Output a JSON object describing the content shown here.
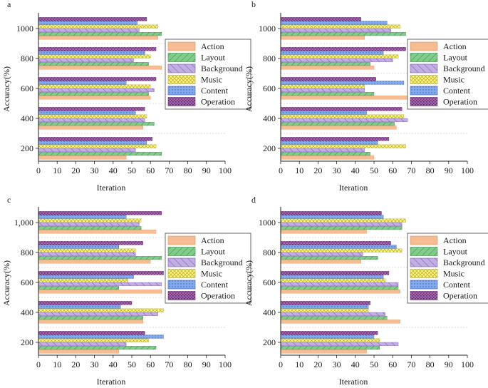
{
  "figure": {
    "x_label": "Iteration",
    "y_label": "Accuracy(%)"
  },
  "colors": {
    "Action": "#f7bd92",
    "Layout": "#80cc8a",
    "Background": "#c3aee3",
    "Music": "#fbf57e",
    "Content": "#84aaee",
    "Operation": "#a860b0"
  },
  "chart_data": [
    {
      "type": "bar",
      "orientation": "horizontal",
      "panel_label": "a",
      "xlabel": "Iteration",
      "ylabel": "Accuracy(%)",
      "xlim": [
        0,
        100
      ],
      "x_ticks": [
        0,
        10,
        20,
        30,
        40,
        50,
        60,
        70,
        80,
        90,
        100
      ],
      "categories": [
        "200",
        "400",
        "600",
        "800",
        "1000"
      ],
      "legend": [
        "Action",
        "Layout",
        "Background",
        "Music",
        "Content",
        "Operation"
      ],
      "series": [
        {
          "name": "Action",
          "values": [
            47,
            56,
            60,
            66,
            64
          ]
        },
        {
          "name": "Layout",
          "values": [
            66,
            62,
            59,
            59,
            66
          ]
        },
        {
          "name": "Background",
          "values": [
            52,
            57,
            62,
            51,
            54
          ]
        },
        {
          "name": "Music",
          "values": [
            63,
            58,
            60,
            60,
            64
          ]
        },
        {
          "name": "Content",
          "values": [
            58,
            52,
            47,
            57,
            53
          ]
        },
        {
          "name": "Operation",
          "values": [
            61,
            57,
            63,
            63,
            58
          ]
        }
      ]
    },
    {
      "type": "bar",
      "orientation": "horizontal",
      "panel_label": "b",
      "xlabel": "Iteration",
      "ylabel": "Accuracy(%)",
      "xlim": [
        0,
        100
      ],
      "x_ticks": [
        0,
        10,
        20,
        30,
        40,
        50,
        60,
        70,
        80,
        90,
        100
      ],
      "categories": [
        "200",
        "400",
        "600",
        "800",
        "1000"
      ],
      "legend": [
        "Action",
        "Layout",
        "Background",
        "Music",
        "Content",
        "Operation"
      ],
      "series": [
        {
          "name": "Action",
          "values": [
            50,
            62,
            68,
            50,
            45
          ]
        },
        {
          "name": "Layout",
          "values": [
            48,
            61,
            50,
            48,
            67
          ]
        },
        {
          "name": "Background",
          "values": [
            45,
            68,
            45,
            60,
            59
          ]
        },
        {
          "name": "Music",
          "values": [
            67,
            66,
            45,
            63,
            64
          ]
        },
        {
          "name": "Content",
          "values": [
            52,
            46,
            66,
            55,
            57
          ]
        },
        {
          "name": "Operation",
          "values": [
            58,
            65,
            51,
            67,
            43
          ]
        }
      ]
    },
    {
      "type": "bar",
      "orientation": "horizontal",
      "panel_label": "c",
      "xlabel": "Iteration",
      "ylabel": "Accuracy(%)",
      "xlim": [
        0,
        100
      ],
      "x_ticks": [
        0,
        10,
        20,
        30,
        40,
        50,
        60,
        70,
        80,
        90,
        100
      ],
      "categories": [
        "200",
        "400",
        "600",
        "800",
        "1,000"
      ],
      "legend": [
        "Action",
        "Layout",
        "Background",
        "Music",
        "Content",
        "Operation"
      ],
      "series": [
        {
          "name": "Action",
          "values": [
            43,
            56,
            66,
            60,
            63
          ]
        },
        {
          "name": "Layout",
          "values": [
            63,
            56,
            43,
            66,
            55
          ]
        },
        {
          "name": "Background",
          "values": [
            47,
            64,
            66,
            52,
            54
          ]
        },
        {
          "name": "Music",
          "values": [
            59,
            67,
            48,
            52,
            55
          ]
        },
        {
          "name": "Content",
          "values": [
            67,
            44,
            51,
            43,
            47
          ]
        },
        {
          "name": "Operation",
          "values": [
            57,
            50,
            67,
            56,
            66
          ]
        }
      ]
    },
    {
      "type": "bar",
      "orientation": "horizontal",
      "panel_label": "d",
      "xlabel": "Iteration",
      "ylabel": "Accuracy(%)",
      "xlim": [
        0,
        100
      ],
      "x_ticks": [
        0,
        10,
        20,
        30,
        40,
        50,
        60,
        70,
        80,
        90,
        100
      ],
      "categories": [
        "200",
        "400",
        "600",
        "800",
        "1000"
      ],
      "legend": [
        "Action",
        "Layout",
        "Background",
        "Music",
        "Content",
        "Operation"
      ],
      "series": [
        {
          "name": "Action",
          "values": [
            46,
            64,
            64,
            43,
            46
          ]
        },
        {
          "name": "Layout",
          "values": [
            53,
            57,
            63,
            52,
            65
          ]
        },
        {
          "name": "Background",
          "values": [
            63,
            56,
            63,
            44,
            65
          ]
        },
        {
          "name": "Music",
          "values": [
            53,
            47,
            56,
            65,
            67
          ]
        },
        {
          "name": "Content",
          "values": [
            50,
            47,
            55,
            62,
            55
          ]
        },
        {
          "name": "Operation",
          "values": [
            52,
            48,
            58,
            59,
            54
          ]
        }
      ]
    }
  ]
}
